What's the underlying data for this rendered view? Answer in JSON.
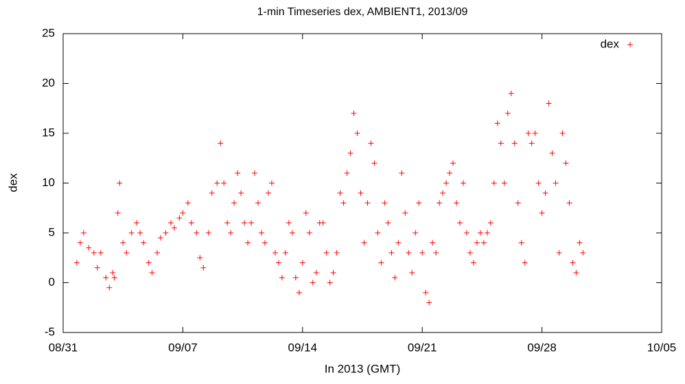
{
  "chart_data": {
    "type": "scatter",
    "title": "1-min Timeseries dex, AMBIENT1, 2013/09",
    "x_label": "In 2013 (GMT)",
    "y_label": "dex",
    "xlim": [
      0,
      35
    ],
    "xticks": [
      {
        "value": 0,
        "label": "08/31"
      },
      {
        "value": 7,
        "label": "09/07"
      },
      {
        "value": 14,
        "label": "09/14"
      },
      {
        "value": 21,
        "label": "09/21"
      },
      {
        "value": 28,
        "label": "09/28"
      },
      {
        "value": 35,
        "label": "10/05"
      }
    ],
    "ylim": [
      -5,
      25
    ],
    "yticks": [
      -5,
      0,
      5,
      10,
      15,
      20,
      25
    ],
    "legend": "top-right",
    "series": [
      {
        "name": "dex",
        "color": "#ff0000",
        "x": [
          0.8,
          1.0,
          1.2,
          1.5,
          1.8,
          2.0,
          2.2,
          2.5,
          2.7,
          2.9,
          3.0,
          3.2,
          3.3,
          3.5,
          3.7,
          4.0,
          4.3,
          4.5,
          4.7,
          5.0,
          5.2,
          5.5,
          5.7,
          6.0,
          6.3,
          6.5,
          6.8,
          7.0,
          7.3,
          7.5,
          7.8,
          8.0,
          8.2,
          8.5,
          8.7,
          9.0,
          9.2,
          9.4,
          9.6,
          9.8,
          10.0,
          10.2,
          10.4,
          10.6,
          10.8,
          11.0,
          11.2,
          11.4,
          11.6,
          11.8,
          12.0,
          12.2,
          12.4,
          12.6,
          12.8,
          13.0,
          13.2,
          13.4,
          13.6,
          13.8,
          14.0,
          14.2,
          14.4,
          14.6,
          14.8,
          15.0,
          15.2,
          15.4,
          15.6,
          15.8,
          16.0,
          16.2,
          16.4,
          16.6,
          16.8,
          17.0,
          17.2,
          17.4,
          17.6,
          17.8,
          18.0,
          18.2,
          18.4,
          18.6,
          18.8,
          19.0,
          19.2,
          19.4,
          19.6,
          19.8,
          20.0,
          20.2,
          20.4,
          20.6,
          20.8,
          21.0,
          21.2,
          21.4,
          21.6,
          21.8,
          22.0,
          22.2,
          22.4,
          22.6,
          22.8,
          23.0,
          23.2,
          23.4,
          23.6,
          23.8,
          24.0,
          24.2,
          24.4,
          24.6,
          24.8,
          25.0,
          25.2,
          25.4,
          25.6,
          25.8,
          26.0,
          26.2,
          26.4,
          26.6,
          26.8,
          27.0,
          27.2,
          27.4,
          27.6,
          27.8,
          28.0,
          28.2,
          28.4,
          28.6,
          28.8,
          29.0,
          29.2,
          29.4,
          29.6,
          29.8,
          30.0,
          30.2,
          30.4
        ],
        "values": [
          2,
          4,
          5,
          3.5,
          3,
          1.5,
          3,
          0.5,
          -0.5,
          1,
          0.5,
          7,
          10,
          4,
          3,
          5,
          6,
          5,
          4,
          2,
          1,
          3,
          4.5,
          5,
          6,
          5.5,
          6.5,
          7,
          8,
          6,
          5,
          2.5,
          1.5,
          5,
          9,
          10,
          14,
          10,
          6,
          5,
          8,
          11,
          9,
          6,
          4,
          6,
          11,
          8,
          5,
          4,
          9,
          10,
          3,
          2,
          0.5,
          3,
          6,
          5,
          0.5,
          -1,
          2,
          7,
          5,
          0,
          1,
          6,
          6,
          3,
          0,
          1,
          3,
          9,
          8,
          11,
          13,
          17,
          15,
          9,
          4,
          8,
          14,
          12,
          5,
          2,
          8,
          6,
          3,
          0.5,
          4,
          11,
          7,
          3,
          1,
          5,
          8,
          3,
          -1,
          -2,
          4,
          3,
          8,
          9,
          10,
          11,
          12,
          8,
          6,
          10,
          5,
          3,
          2,
          4,
          5,
          4,
          5,
          6,
          10,
          16,
          14,
          10,
          17,
          19,
          14,
          8,
          4,
          2,
          15,
          14,
          15,
          10,
          7,
          9,
          18,
          13,
          10,
          3,
          15,
          12,
          8,
          2,
          1,
          4,
          3
        ]
      }
    ]
  }
}
